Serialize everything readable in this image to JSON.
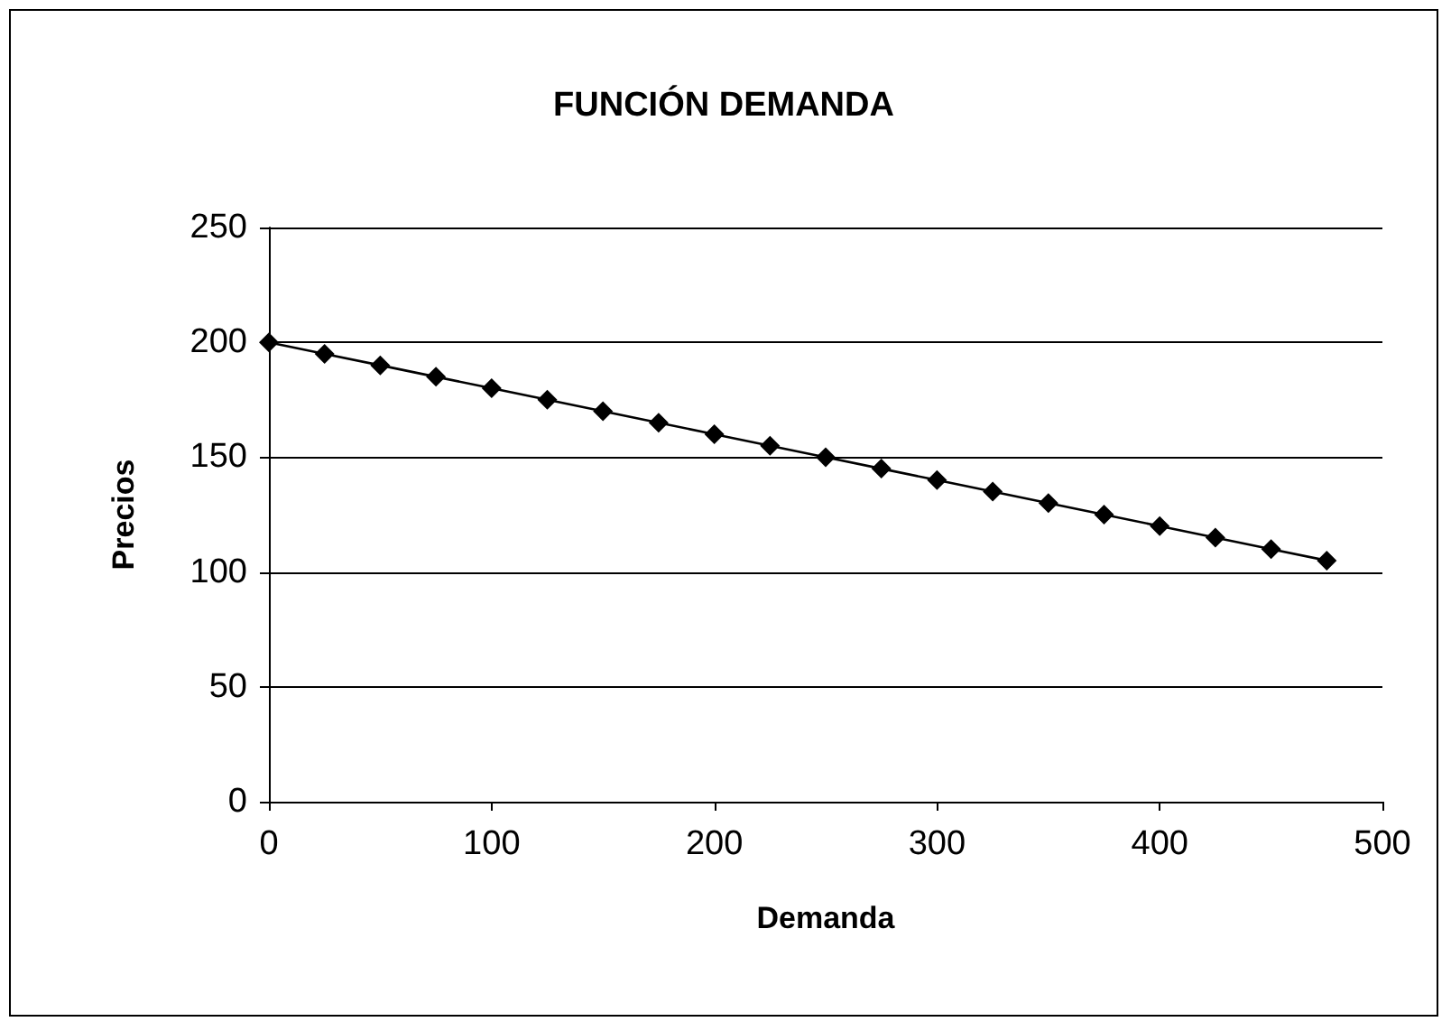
{
  "chart_data": {
    "type": "line",
    "title": "FUNCIÓN DEMANDA",
    "xlabel": "Demanda",
    "ylabel": "Precios",
    "x": [
      0,
      25,
      50,
      75,
      100,
      125,
      150,
      175,
      200,
      225,
      250,
      275,
      300,
      325,
      350,
      375,
      400,
      425,
      450,
      475
    ],
    "series": [
      {
        "color": "#000000",
        "values": [
          200,
          195,
          190,
          185,
          180,
          175,
          170,
          165,
          160,
          155,
          150,
          145,
          140,
          135,
          130,
          125,
          120,
          115,
          110,
          105
        ]
      }
    ],
    "xlim": [
      0,
      500
    ],
    "xticks": [
      0,
      100,
      200,
      300,
      400,
      500
    ],
    "ylim": [
      0,
      250
    ],
    "yticks": [
      0,
      50,
      100,
      150,
      200,
      250
    ],
    "grid": "y",
    "marker": "diamond",
    "line_style": "solid"
  }
}
